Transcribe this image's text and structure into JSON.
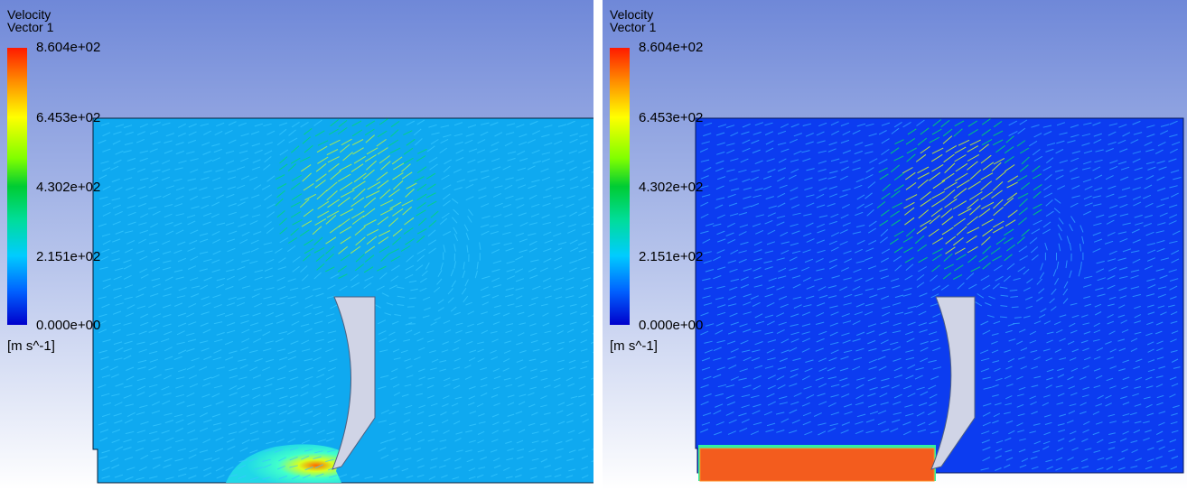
{
  "legend": {
    "title": "Velocity",
    "subtitle": "Vector 1",
    "unit": "[m s^-1]",
    "ticks": [
      "8.604e+02",
      "6.453e+02",
      "4.302e+02",
      "2.151e+02",
      "0.000e+00"
    ],
    "range": [
      0,
      860.4
    ]
  },
  "colors": {
    "background_top": "#6f88d8",
    "background_bottom": "#ffffff",
    "left_domain_fill": "#0fa9f0",
    "right_domain_fill": "#0c3cf0",
    "right_bottom_slab": "#f35c1e",
    "plate": "#d0d4e6",
    "vector_low": "#38c8ff",
    "vector_mid": "#00dd66",
    "vector_high": "#d8ff20"
  }
}
